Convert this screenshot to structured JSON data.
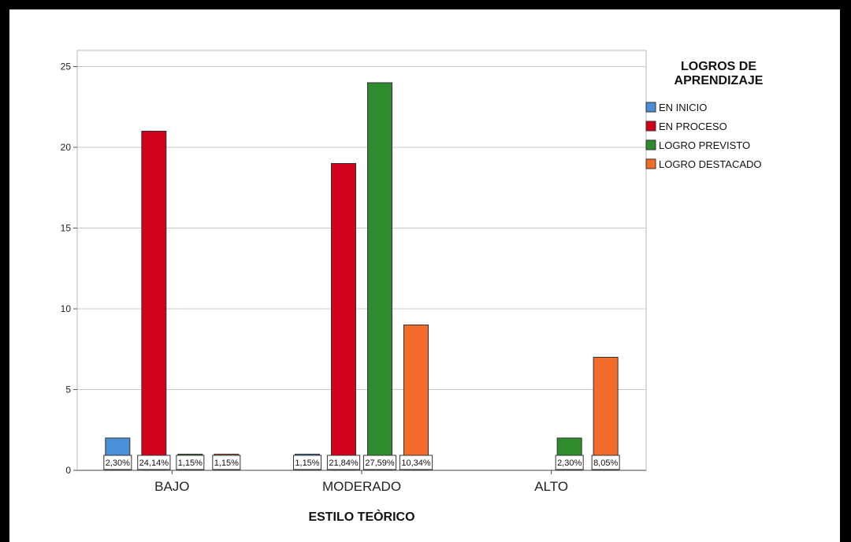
{
  "chart_data": {
    "type": "bar",
    "xlabel": "ESTILO TEÒRICO",
    "ylabel": "",
    "ylim": [
      0,
      26
    ],
    "yticks": [
      0,
      5,
      10,
      15,
      20,
      25
    ],
    "grid": true,
    "categories": [
      "BAJO",
      "MODERADO",
      "ALTO"
    ],
    "legend": {
      "title_lines": [
        "LOGROS DE",
        "APRENDIZAJE"
      ],
      "placement": "top-right"
    },
    "series": [
      {
        "name": "EN INICIO",
        "color": "#4a90d9",
        "values": [
          2,
          1,
          0
        ],
        "labels": [
          "2,30%",
          "1,15%",
          ""
        ]
      },
      {
        "name": "EN PROCESO",
        "color": "#d0021b",
        "values": [
          21,
          19,
          0
        ],
        "labels": [
          "24,14%",
          "21,84%",
          ""
        ]
      },
      {
        "name": "LOGRO PREVISTO",
        "color": "#2e8b2e",
        "values": [
          1,
          24,
          2
        ],
        "labels": [
          "1,15%",
          "27,59%",
          "2,30%"
        ]
      },
      {
        "name": "LOGRO DESTACADO",
        "color": "#f26b2a",
        "values": [
          1,
          9,
          7
        ],
        "labels": [
          "1,15%",
          "10,34%",
          "8,05%"
        ]
      }
    ]
  }
}
